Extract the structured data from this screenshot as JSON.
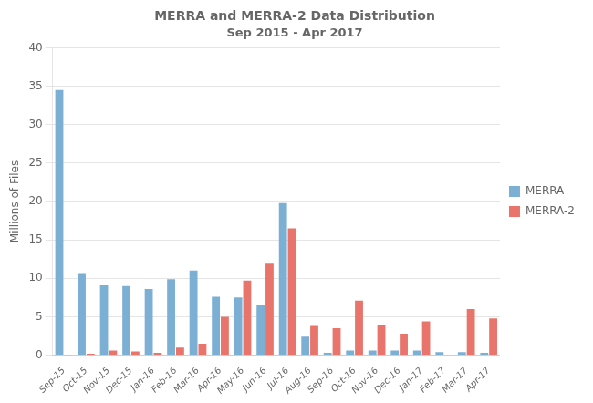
{
  "chart_data": {
    "type": "bar",
    "title": "MERRA and MERRA-2 Data Distribution",
    "subtitle": "Sep 2015 - Apr 2017",
    "ylabel": "Millions of Files",
    "categories": [
      "Sep-15",
      "Oct-15",
      "Nov-15",
      "Dec-15",
      "Jan-16",
      "Feb-16",
      "Mar-16",
      "Apr-16",
      "May-16",
      "Jun-16",
      "Jul-16",
      "Aug-16",
      "Sep-16",
      "Oct-16",
      "Nov-16",
      "Dec-16",
      "Jan-17",
      "Feb-17",
      "Mar-17",
      "Apr-17"
    ],
    "series": [
      {
        "name": "MERRA",
        "color": "#7BAFD4",
        "values": [
          34.5,
          10.7,
          9.1,
          9.0,
          8.6,
          9.9,
          11.0,
          7.6,
          7.5,
          6.5,
          19.8,
          2.4,
          0.3,
          0.6,
          0.6,
          0.6,
          0.6,
          0.4,
          0.4,
          0.3
        ]
      },
      {
        "name": "MERRA-2",
        "color": "#E8746C",
        "values": [
          0.05,
          0.2,
          0.6,
          0.5,
          0.3,
          1.0,
          1.5,
          5.0,
          9.7,
          11.9,
          16.5,
          3.8,
          3.5,
          7.1,
          4.0,
          2.8,
          4.4,
          0.0,
          6.0,
          4.8
        ]
      }
    ],
    "ylim": [
      0,
      40
    ],
    "yticks": [
      0,
      5,
      10,
      15,
      20,
      25,
      30,
      35,
      40
    ],
    "grid": true,
    "legend": "right"
  }
}
